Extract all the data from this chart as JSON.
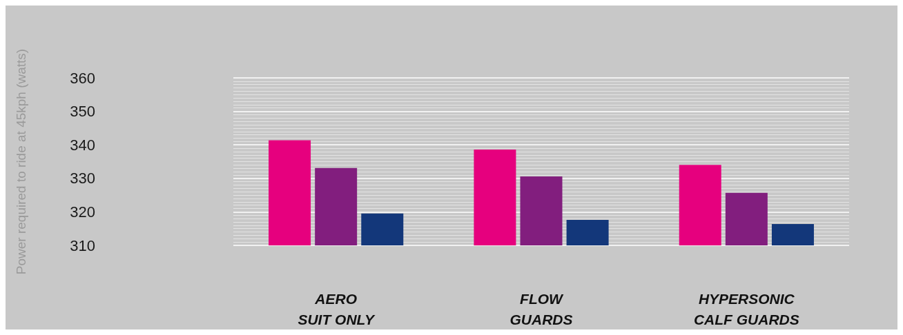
{
  "chart_data": {
    "type": "bar",
    "ylabel": "Power required to ride at 45kph (watts)",
    "categories": [
      "AERO\nSUIT ONLY",
      "FLOW\nGUARDS",
      "HYPERSONIC\nCALF GUARDS"
    ],
    "series": [
      {
        "color": "#e6007e",
        "values": [
          341.4,
          338.6,
          334
        ]
      },
      {
        "color": "#821e7e",
        "values": [
          333.1,
          330.6,
          325.7
        ]
      },
      {
        "color": "#13377a",
        "values": [
          319.5,
          317.6,
          316.4
        ]
      }
    ],
    "ylim": [
      310,
      360
    ],
    "yticks": [
      310,
      320,
      330,
      340,
      350,
      360
    ],
    "grid": "y"
  }
}
